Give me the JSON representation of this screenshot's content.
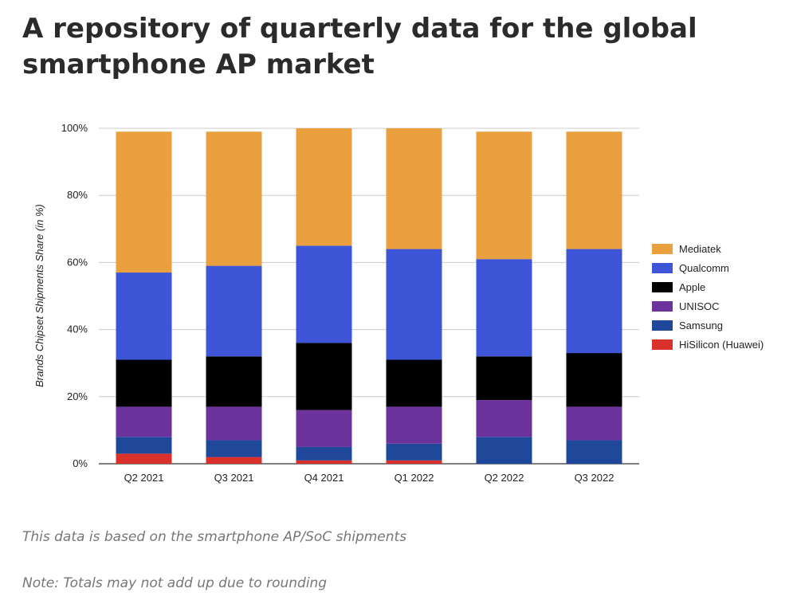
{
  "title": "A repository of quarterly data for the global smartphone AP market",
  "notes": [
    "This data is based on the smartphone AP/SoC shipments",
    "Note: Totals may not add up due to rounding"
  ],
  "chart_data": {
    "type": "bar",
    "stacked": true,
    "categories": [
      "Q2 2021",
      "Q3 2021",
      "Q4 2021",
      "Q1 2022",
      "Q2 2022",
      "Q3 2022"
    ],
    "ylabel": "Brands Chipset Shipments Share (in %)",
    "xlabel": "",
    "ylim": [
      0,
      100
    ],
    "yticks": [
      "0%",
      "20%",
      "40%",
      "60%",
      "80%",
      "100%"
    ],
    "grid": true,
    "legend_position": "right",
    "series": [
      {
        "name": "HiSilicon (Huawei)",
        "color": "#d9302c",
        "values": [
          3,
          2,
          1,
          1,
          0,
          0
        ]
      },
      {
        "name": "Samsung",
        "color": "#20489a",
        "values": [
          5,
          5,
          4,
          5,
          8,
          7
        ]
      },
      {
        "name": "UNISOC",
        "color": "#6b339b",
        "values": [
          9,
          10,
          11,
          11,
          11,
          10
        ]
      },
      {
        "name": "Apple",
        "color": "#000000",
        "values": [
          14,
          15,
          20,
          14,
          13,
          16
        ]
      },
      {
        "name": "Qualcomm",
        "color": "#3d55d6",
        "values": [
          26,
          27,
          29,
          33,
          29,
          31
        ]
      },
      {
        "name": "Mediatek",
        "color": "#eaa03f",
        "values": [
          42,
          40,
          35,
          36,
          38,
          35
        ]
      }
    ]
  }
}
